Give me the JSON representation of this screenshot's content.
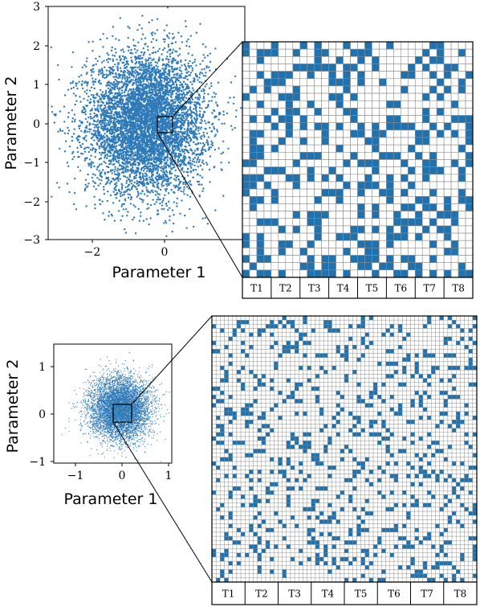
{
  "colors": {
    "point": "#2f7ab9",
    "cell_on": "#1f72b0",
    "grid": "#8c8c8c",
    "frame": "#000000"
  },
  "chart_data": [
    {
      "type": "scatter",
      "xlabel": "Parameter 1",
      "ylabel": "Parameter 2",
      "xlim": [
        -3,
        3
      ],
      "ylim": [
        -3,
        3
      ],
      "x_ticks": [
        "−2",
        "0"
      ],
      "y_ticks": [
        "3",
        "2",
        "1",
        "0",
        "−1",
        "−2",
        "−3"
      ],
      "distribution": {
        "mean": [
          0,
          0
        ],
        "std": [
          0.9,
          0.9
        ],
        "n_points": 6000
      },
      "zoom_box": {
        "x": [
          -0.2,
          0.2
        ],
        "y": [
          -0.2,
          0.2
        ]
      }
    },
    {
      "type": "heatmap",
      "rows": 32,
      "cols": 32,
      "column_groups": [
        "T1",
        "T2",
        "T3",
        "T4",
        "T5",
        "T6",
        "T7",
        "T8"
      ],
      "fill_fraction": 0.35
    },
    {
      "type": "scatter",
      "xlabel": "Parameter 1",
      "ylabel": "Parameter 2",
      "xlim": [
        -1.4,
        1.1
      ],
      "ylim": [
        -1.1,
        1.3
      ],
      "x_ticks": [
        "−1",
        "0",
        "1"
      ],
      "y_ticks": [
        "1",
        "0",
        "−1"
      ],
      "distribution": {
        "mean": [
          0,
          0
        ],
        "std": [
          0.32,
          0.32
        ],
        "n_points": 6000
      },
      "zoom_box": {
        "x": [
          -0.2,
          0.2
        ],
        "y": [
          -0.2,
          0.2
        ]
      }
    },
    {
      "type": "heatmap",
      "rows": 64,
      "cols": 64,
      "column_groups": [
        "T1",
        "T2",
        "T3",
        "T4",
        "T5",
        "T6",
        "T7",
        "T8"
      ],
      "fill_fraction": 0.2
    }
  ]
}
